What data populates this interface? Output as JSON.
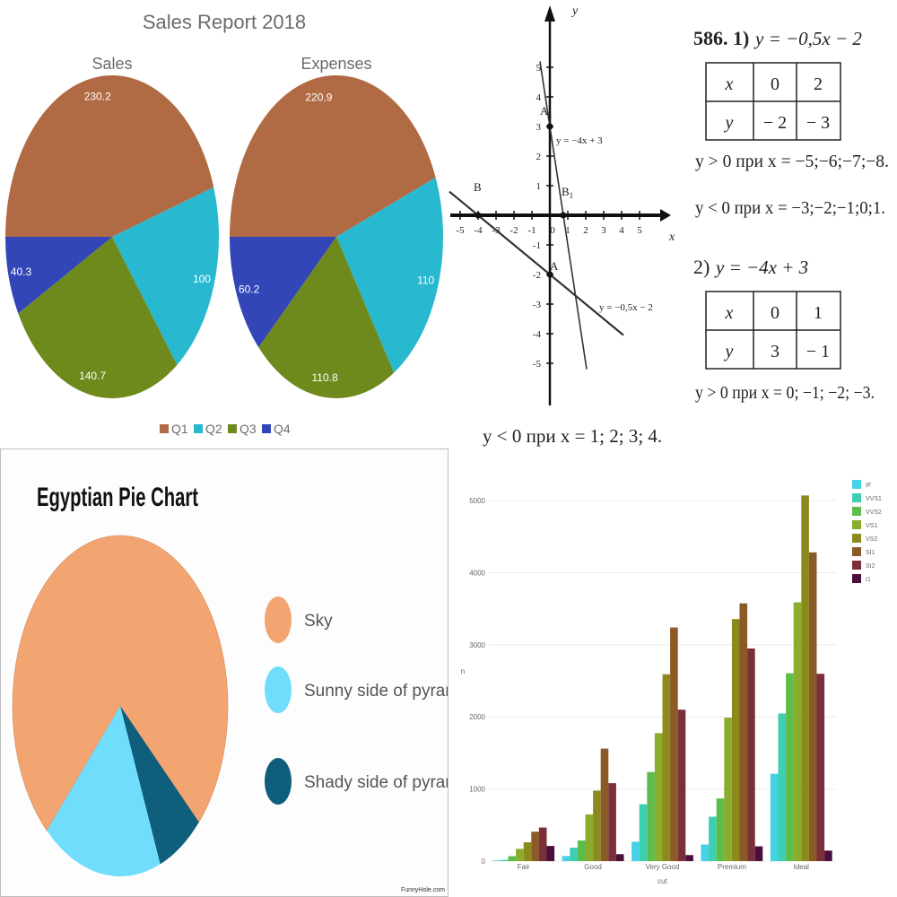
{
  "chart_data": [
    {
      "type": "pie",
      "title": "Sales Report 2018",
      "legend_position": "bottom",
      "categories": [
        "Q1",
        "Q2",
        "Q3",
        "Q4"
      ],
      "colors": [
        "#b06b45",
        "#28b8cf",
        "#6f8a1c",
        "#3346b8"
      ],
      "series": [
        {
          "name": "Sales",
          "values": [
            230.2,
            100,
            140.7,
            40.3
          ]
        },
        {
          "name": "Expenses",
          "values": [
            220.9,
            110,
            110.8,
            60.2
          ]
        }
      ]
    },
    {
      "type": "line",
      "title": "",
      "xlabel": "x",
      "ylabel": "y",
      "xlim": [
        -5,
        5
      ],
      "ylim": [
        -5,
        5
      ],
      "x_ticks": [
        "-5",
        "-4",
        "-3",
        "-2",
        "-1",
        "0",
        "1",
        "2",
        "3",
        "4",
        "5"
      ],
      "y_ticks": [
        "5",
        "4",
        "3",
        "2",
        "1",
        "-1",
        "-2",
        "-3",
        "-4",
        "-5"
      ],
      "lines": [
        {
          "label": "y = −4x + 3",
          "slope": -4,
          "intercept": 3
        },
        {
          "label": "y = −0,5x − 2",
          "slope": -0.5,
          "intercept": -2
        }
      ],
      "points": [
        {
          "label": "A1",
          "x": 0,
          "y": 3
        },
        {
          "label": "B1",
          "x": 0.75,
          "y": 0
        },
        {
          "label": "A",
          "x": 0,
          "y": -2
        },
        {
          "label": "B",
          "x": -4,
          "y": 0
        }
      ]
    },
    {
      "type": "pie",
      "title": "Egyptian Pie Chart",
      "legend_position": "right",
      "categories": [
        "Sky",
        "Sunny side of pyramid",
        "Shady side of pyramid"
      ],
      "colors": [
        "#f2a571",
        "#71ddfc",
        "#0f5e7b"
      ],
      "values": [
        75,
        18,
        7
      ]
    },
    {
      "type": "bar",
      "xlabel": "cut",
      "ylabel": "n",
      "ylim": [
        0,
        5200
      ],
      "y_ticks": [
        0,
        1000,
        2000,
        3000,
        4000,
        5000
      ],
      "legend_position": "top-right",
      "categories": [
        "Fair",
        "Good",
        "Very Good",
        "Premium",
        "Ideal"
      ],
      "series": [
        {
          "name": "IF",
          "color": "#45d2e6",
          "values": [
            9,
            71,
            268,
            230,
            1212
          ]
        },
        {
          "name": "VVS1",
          "color": "#3ccfb1",
          "values": [
            17,
            186,
            789,
            616,
            2047
          ]
        },
        {
          "name": "VVS2",
          "color": "#5ebd4a",
          "values": [
            69,
            286,
            1235,
            870,
            2606
          ]
        },
        {
          "name": "VS1",
          "color": "#8aad2d",
          "values": [
            170,
            648,
            1775,
            1989,
            3589
          ]
        },
        {
          "name": "VS2",
          "color": "#8c8a1c",
          "values": [
            261,
            978,
            2591,
            3357,
            5071
          ]
        },
        {
          "name": "SI1",
          "color": "#8a5a27",
          "values": [
            408,
            1560,
            3240,
            3575,
            4282
          ]
        },
        {
          "name": "SI2",
          "color": "#7a2f3a",
          "values": [
            466,
            1081,
            2100,
            2949,
            2598
          ]
        },
        {
          "name": "I1",
          "color": "#4a0f3b",
          "values": [
            210,
            96,
            84,
            205,
            146
          ]
        }
      ]
    }
  ],
  "panel_a": {
    "title": "Sales Report 2018",
    "pie1_title": "Sales",
    "pie2_title": "Expenses"
  },
  "panel_b": {
    "axis_x": "x",
    "axis_y": "y",
    "line1_label": "y = −4x + 3",
    "line2_label": "y = −0,5x − 2",
    "pt_a1": "A",
    "pt_a1_sub": "1",
    "pt_b1": "B",
    "pt_b1_sub": "1",
    "pt_a": "A",
    "pt_b": "B",
    "bottom_note": "y < 0   при  x = 1; 2; 3; 4.",
    "task1_head": "586. 1)",
    "task1_eq": "y = −0,5x − 2",
    "table1": {
      "row1": [
        "x",
        "0",
        "2"
      ],
      "row2": [
        "y",
        "− 2",
        "− 3"
      ]
    },
    "task1_pos": "y > 0   при  x = −5;−6;−7;−8.",
    "task1_neg": "y < 0   при  x = −3;−2;−1;0;1.",
    "task2_head": "2)",
    "task2_eq": "y = −4x + 3",
    "table2": {
      "row1": [
        "x",
        "0",
        "1"
      ],
      "row2": [
        "y",
        "3",
        "− 1"
      ]
    },
    "task2_pos": "y > 0   при  x = 0; −1; −2; −3."
  },
  "panel_c": {
    "credit": "FunnyHole.com"
  }
}
